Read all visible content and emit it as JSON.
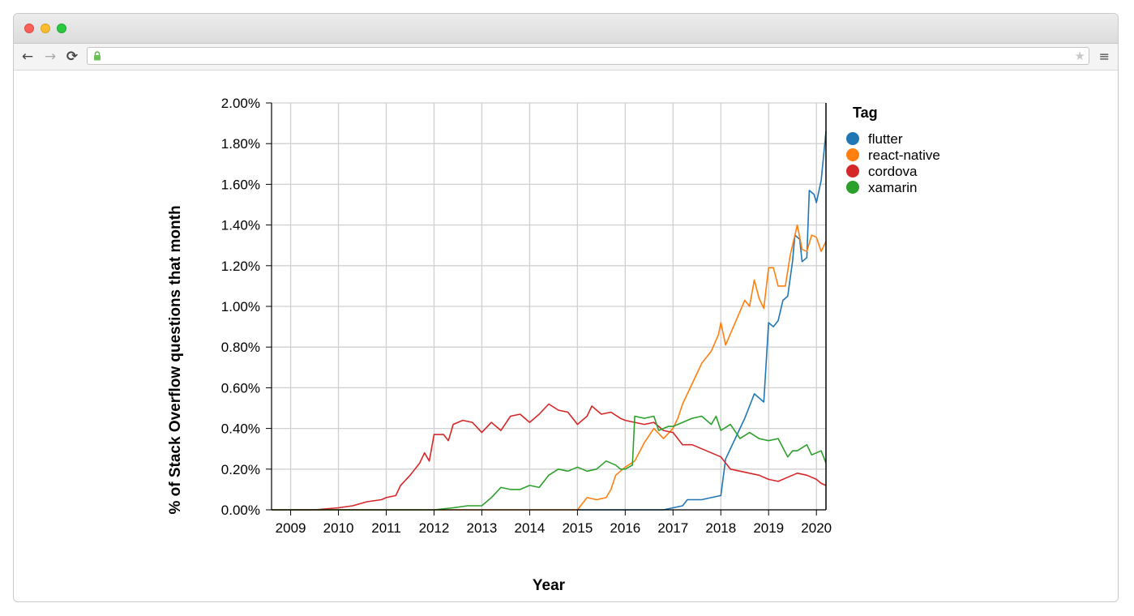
{
  "browser": {
    "url": "",
    "back_icon": "←",
    "forward_icon": "→",
    "reload_icon": "⟳",
    "star_icon": "★",
    "menu_icon": "≡"
  },
  "chart_data": {
    "type": "line",
    "title": "",
    "xlabel": "Year",
    "ylabel": "% of Stack Overflow questions that month",
    "xlim": [
      2008.6,
      2020.2
    ],
    "ylim": [
      0,
      2.0
    ],
    "x_ticks": [
      "2009",
      "2010",
      "2011",
      "2012",
      "2013",
      "2014",
      "2015",
      "2016",
      "2017",
      "2018",
      "2019",
      "2020"
    ],
    "y_ticks": [
      "0.00%",
      "0.20%",
      "0.40%",
      "0.60%",
      "0.80%",
      "1.00%",
      "1.20%",
      "1.40%",
      "1.60%",
      "1.80%",
      "2.00%"
    ],
    "grid": true,
    "legend": {
      "title": "Tag",
      "position": "right"
    },
    "series": [
      {
        "name": "flutter",
        "color": "#1f77b4",
        "points": [
          [
            2015.0,
            0
          ],
          [
            2016.0,
            0
          ],
          [
            2016.8,
            0
          ],
          [
            2017.0,
            0.01
          ],
          [
            2017.2,
            0.02
          ],
          [
            2017.3,
            0.05
          ],
          [
            2017.6,
            0.05
          ],
          [
            2017.8,
            0.06
          ],
          [
            2018.0,
            0.07
          ],
          [
            2018.1,
            0.25
          ],
          [
            2018.3,
            0.35
          ],
          [
            2018.5,
            0.45
          ],
          [
            2018.7,
            0.57
          ],
          [
            2018.9,
            0.53
          ],
          [
            2019.0,
            0.92
          ],
          [
            2019.1,
            0.9
          ],
          [
            2019.2,
            0.93
          ],
          [
            2019.3,
            1.03
          ],
          [
            2019.4,
            1.05
          ],
          [
            2019.5,
            1.22
          ],
          [
            2019.55,
            1.35
          ],
          [
            2019.65,
            1.33
          ],
          [
            2019.7,
            1.22
          ],
          [
            2019.8,
            1.24
          ],
          [
            2019.85,
            1.57
          ],
          [
            2019.95,
            1.55
          ],
          [
            2020.0,
            1.51
          ],
          [
            2020.1,
            1.62
          ],
          [
            2020.2,
            1.86
          ]
        ]
      },
      {
        "name": "react-native",
        "color": "#ff7f0e",
        "points": [
          [
            2009.0,
            0
          ],
          [
            2015.0,
            0
          ],
          [
            2015.1,
            0.03
          ],
          [
            2015.2,
            0.06
          ],
          [
            2015.4,
            0.05
          ],
          [
            2015.6,
            0.06
          ],
          [
            2015.7,
            0.1
          ],
          [
            2015.8,
            0.17
          ],
          [
            2016.0,
            0.21
          ],
          [
            2016.2,
            0.24
          ],
          [
            2016.4,
            0.33
          ],
          [
            2016.6,
            0.4
          ],
          [
            2016.8,
            0.35
          ],
          [
            2017.0,
            0.4
          ],
          [
            2017.1,
            0.45
          ],
          [
            2017.2,
            0.52
          ],
          [
            2017.4,
            0.62
          ],
          [
            2017.6,
            0.72
          ],
          [
            2017.8,
            0.78
          ],
          [
            2017.95,
            0.86
          ],
          [
            2018.0,
            0.92
          ],
          [
            2018.1,
            0.81
          ],
          [
            2018.3,
            0.92
          ],
          [
            2018.5,
            1.03
          ],
          [
            2018.6,
            1.0
          ],
          [
            2018.7,
            1.13
          ],
          [
            2018.8,
            1.04
          ],
          [
            2018.9,
            0.99
          ],
          [
            2019.0,
            1.19
          ],
          [
            2019.1,
            1.19
          ],
          [
            2019.2,
            1.1
          ],
          [
            2019.35,
            1.1
          ],
          [
            2019.45,
            1.25
          ],
          [
            2019.6,
            1.4
          ],
          [
            2019.7,
            1.28
          ],
          [
            2019.8,
            1.27
          ],
          [
            2019.9,
            1.35
          ],
          [
            2020.0,
            1.34
          ],
          [
            2020.1,
            1.27
          ],
          [
            2020.2,
            1.32
          ]
        ]
      },
      {
        "name": "cordova",
        "color": "#d62728",
        "points": [
          [
            2008.6,
            0
          ],
          [
            2009.5,
            0
          ],
          [
            2010.0,
            0.01
          ],
          [
            2010.3,
            0.02
          ],
          [
            2010.6,
            0.04
          ],
          [
            2010.9,
            0.05
          ],
          [
            2011.0,
            0.06
          ],
          [
            2011.2,
            0.07
          ],
          [
            2011.3,
            0.12
          ],
          [
            2011.5,
            0.17
          ],
          [
            2011.7,
            0.23
          ],
          [
            2011.8,
            0.28
          ],
          [
            2011.9,
            0.24
          ],
          [
            2012.0,
            0.37
          ],
          [
            2012.2,
            0.37
          ],
          [
            2012.3,
            0.34
          ],
          [
            2012.4,
            0.42
          ],
          [
            2012.6,
            0.44
          ],
          [
            2012.8,
            0.43
          ],
          [
            2013.0,
            0.38
          ],
          [
            2013.2,
            0.43
          ],
          [
            2013.4,
            0.39
          ],
          [
            2013.6,
            0.46
          ],
          [
            2013.8,
            0.47
          ],
          [
            2014.0,
            0.43
          ],
          [
            2014.2,
            0.47
          ],
          [
            2014.4,
            0.52
          ],
          [
            2014.6,
            0.49
          ],
          [
            2014.8,
            0.48
          ],
          [
            2015.0,
            0.42
          ],
          [
            2015.2,
            0.46
          ],
          [
            2015.3,
            0.51
          ],
          [
            2015.5,
            0.47
          ],
          [
            2015.7,
            0.48
          ],
          [
            2015.9,
            0.45
          ],
          [
            2016.0,
            0.44
          ],
          [
            2016.2,
            0.43
          ],
          [
            2016.4,
            0.42
          ],
          [
            2016.6,
            0.43
          ],
          [
            2016.8,
            0.39
          ],
          [
            2017.0,
            0.38
          ],
          [
            2017.2,
            0.32
          ],
          [
            2017.4,
            0.32
          ],
          [
            2017.6,
            0.3
          ],
          [
            2017.8,
            0.28
          ],
          [
            2018.0,
            0.26
          ],
          [
            2018.2,
            0.2
          ],
          [
            2018.4,
            0.19
          ],
          [
            2018.6,
            0.18
          ],
          [
            2018.8,
            0.17
          ],
          [
            2019.0,
            0.15
          ],
          [
            2019.2,
            0.14
          ],
          [
            2019.4,
            0.16
          ],
          [
            2019.6,
            0.18
          ],
          [
            2019.8,
            0.17
          ],
          [
            2020.0,
            0.15
          ],
          [
            2020.1,
            0.13
          ],
          [
            2020.2,
            0.12
          ]
        ]
      },
      {
        "name": "xamarin",
        "color": "#2ca02c",
        "points": [
          [
            2008.6,
            0
          ],
          [
            2012.0,
            0
          ],
          [
            2012.4,
            0.01
          ],
          [
            2012.7,
            0.02
          ],
          [
            2013.0,
            0.02
          ],
          [
            2013.2,
            0.06
          ],
          [
            2013.4,
            0.11
          ],
          [
            2013.6,
            0.1
          ],
          [
            2013.8,
            0.1
          ],
          [
            2014.0,
            0.12
          ],
          [
            2014.2,
            0.11
          ],
          [
            2014.4,
            0.17
          ],
          [
            2014.6,
            0.2
          ],
          [
            2014.8,
            0.19
          ],
          [
            2015.0,
            0.21
          ],
          [
            2015.2,
            0.19
          ],
          [
            2015.4,
            0.2
          ],
          [
            2015.6,
            0.24
          ],
          [
            2015.8,
            0.22
          ],
          [
            2015.9,
            0.2
          ],
          [
            2016.0,
            0.2
          ],
          [
            2016.15,
            0.22
          ],
          [
            2016.2,
            0.46
          ],
          [
            2016.4,
            0.45
          ],
          [
            2016.6,
            0.46
          ],
          [
            2016.7,
            0.39
          ],
          [
            2016.9,
            0.41
          ],
          [
            2017.0,
            0.41
          ],
          [
            2017.2,
            0.43
          ],
          [
            2017.4,
            0.45
          ],
          [
            2017.6,
            0.46
          ],
          [
            2017.8,
            0.42
          ],
          [
            2017.9,
            0.46
          ],
          [
            2018.0,
            0.39
          ],
          [
            2018.2,
            0.42
          ],
          [
            2018.4,
            0.35
          ],
          [
            2018.6,
            0.38
          ],
          [
            2018.8,
            0.35
          ],
          [
            2019.0,
            0.34
          ],
          [
            2019.2,
            0.35
          ],
          [
            2019.4,
            0.26
          ],
          [
            2019.5,
            0.29
          ],
          [
            2019.6,
            0.29
          ],
          [
            2019.8,
            0.32
          ],
          [
            2019.9,
            0.27
          ],
          [
            2020.0,
            0.28
          ],
          [
            2020.1,
            0.29
          ],
          [
            2020.2,
            0.23
          ]
        ]
      }
    ]
  }
}
